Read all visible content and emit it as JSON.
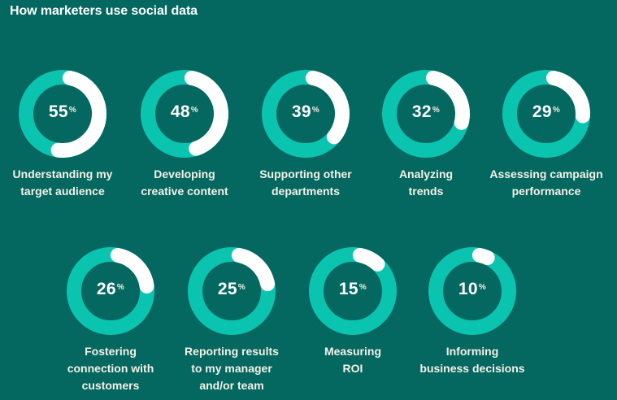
{
  "title": "How marketers use social data",
  "colors": {
    "background": "#046760",
    "ring_track": "#0bc4b0",
    "ring_fill": "#ffffff",
    "text": "#ffffff"
  },
  "chart_data": {
    "type": "pie",
    "subtype": "donut-progress",
    "title": "How marketers use social data",
    "unit": "%",
    "categories": [
      "Understanding my target audience",
      "Developing creative content",
      "Supporting other departments",
      "Analyzing trends",
      "Assessing campaign performance",
      "Fostering connection with customers",
      "Reporting results to my manager and/or team",
      "Measuring ROI",
      "Informing business decisions"
    ],
    "values": [
      55,
      48,
      39,
      32,
      29,
      26,
      25,
      15,
      10
    ]
  },
  "items": [
    {
      "value": "55",
      "pct": "%",
      "percent": 55,
      "label_lines": [
        "Understanding my",
        "target audience"
      ]
    },
    {
      "value": "48",
      "pct": "%",
      "percent": 48,
      "label_lines": [
        "Developing",
        "creative content"
      ]
    },
    {
      "value": "39",
      "pct": "%",
      "percent": 39,
      "label_lines": [
        "Supporting other",
        "departments"
      ]
    },
    {
      "value": "32",
      "pct": "%",
      "percent": 32,
      "label_lines": [
        "Analyzing",
        "trends"
      ]
    },
    {
      "value": "29",
      "pct": "%",
      "percent": 29,
      "label_lines": [
        "Assessing campaign",
        "performance"
      ]
    },
    {
      "value": "26",
      "pct": "%",
      "percent": 26,
      "label_lines": [
        "Fostering",
        "connection with",
        "customers"
      ]
    },
    {
      "value": "25",
      "pct": "%",
      "percent": 25,
      "label_lines": [
        "Reporting results",
        "to my manager",
        "and/or team"
      ]
    },
    {
      "value": "15",
      "pct": "%",
      "percent": 15,
      "label_lines": [
        "Measuring",
        "ROI"
      ]
    },
    {
      "value": "10",
      "pct": "%",
      "percent": 10,
      "label_lines": [
        "Informing",
        "business decisions"
      ]
    }
  ]
}
